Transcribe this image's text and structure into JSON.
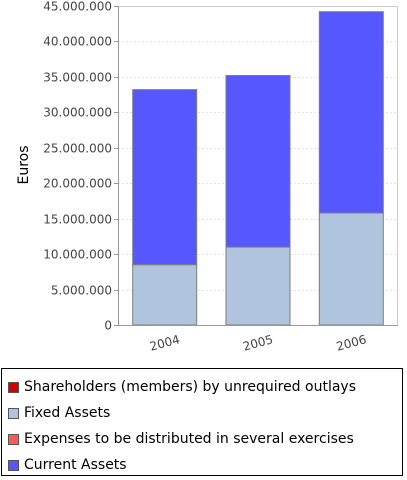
{
  "chart_data": {
    "type": "bar",
    "stacked": true,
    "categories": [
      "2004",
      "2005",
      "2006"
    ],
    "ylabel": "Euros",
    "ylim": [
      0,
      45000000
    ],
    "yticks": [
      "0",
      "5.000.000",
      "10.000.000",
      "15.000.000",
      "20.000.000",
      "25.000.000",
      "30.000.000",
      "35.000.000",
      "40.000.000",
      "45.000.000"
    ],
    "grid": true,
    "legend_position": "bottom",
    "series": [
      {
        "name": "Shareholders (members) by unrequired outlays",
        "color": "#d40000",
        "values": [
          0,
          0,
          0
        ]
      },
      {
        "name": "Fixed Assets",
        "color": "#b0c4de",
        "values": [
          8500000,
          11000000,
          15800000
        ]
      },
      {
        "name": "Expenses to be distributed in several exercises",
        "color": "#ff5a5a",
        "values": [
          0,
          0,
          0
        ]
      },
      {
        "name": "Current Assets",
        "color": "#5757ff",
        "values": [
          24700000,
          24200000,
          28400000
        ]
      }
    ]
  }
}
